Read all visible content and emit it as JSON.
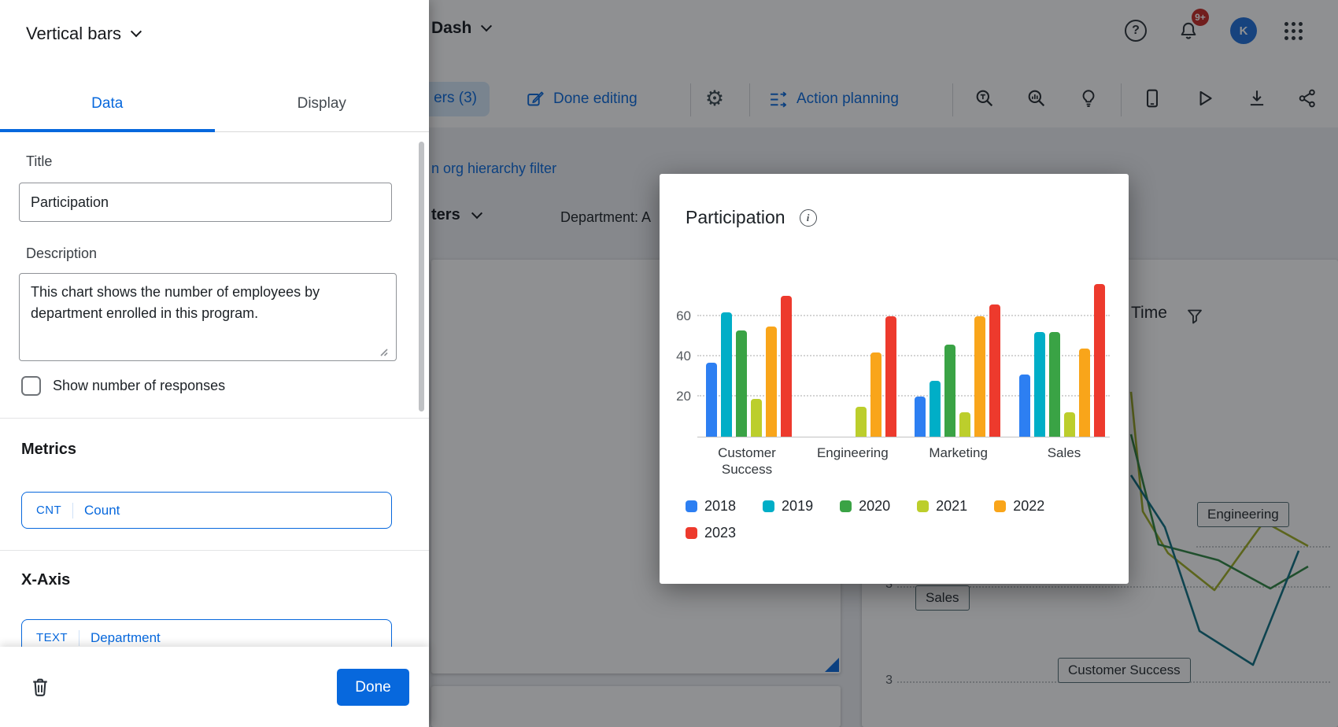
{
  "accent_color": "#0768dd",
  "header": {
    "dashboard_name": "Dash",
    "notification_count": "9+",
    "avatar_initial": "K",
    "help_glyph": "?"
  },
  "toolbar": {
    "filters_chip": "ers (3)",
    "done_editing_label": "Done editing",
    "action_planning_label": "Action planning",
    "gear_glyph": "⚙"
  },
  "dashboard": {
    "hierarchy_link": "n org hierarchy filter",
    "filters_dropdown": "ters",
    "department_filter": "Department: A",
    "time_widget": {
      "title": "Time",
      "y_ticks": [
        "3",
        "3"
      ],
      "line_labels": [
        "Engineering",
        "Sales",
        "Customer Success"
      ]
    }
  },
  "panel": {
    "widget_type_label": "Vertical bars",
    "tabs": [
      {
        "label": "Data"
      },
      {
        "label": "Display"
      }
    ],
    "fields": {
      "title_label": "Title",
      "title_value": "Participation",
      "description_label": "Description",
      "description_value": "This chart shows the number of employees by department enrolled in this program.",
      "checkbox_label": "Show number of responses"
    },
    "metrics": {
      "heading": "Metrics",
      "chip_badge": "CNT",
      "chip_label": "Count"
    },
    "xaxis": {
      "heading": "X-Axis",
      "chip_badge": "TEXT",
      "chip_label": "Department"
    },
    "footer": {
      "done_label": "Done"
    }
  },
  "modal": {
    "title": "Participation",
    "info_glyph": "i"
  },
  "chart_data": {
    "type": "bar",
    "title": "Participation",
    "categories": [
      "Customer Success",
      "Engineering",
      "Marketing",
      "Sales"
    ],
    "series": [
      {
        "name": "2018",
        "color": "#2D7FF2",
        "values": [
          37,
          0,
          20,
          31
        ]
      },
      {
        "name": "2019",
        "color": "#00AEC7",
        "values": [
          62,
          0,
          28,
          52
        ]
      },
      {
        "name": "2020",
        "color": "#3AA345",
        "values": [
          53,
          0,
          46,
          52
        ]
      },
      {
        "name": "2021",
        "color": "#BCCE2C",
        "values": [
          19,
          15,
          12,
          12
        ]
      },
      {
        "name": "2022",
        "color": "#F9A51A",
        "values": [
          55,
          42,
          60,
          44
        ]
      },
      {
        "name": "2023",
        "color": "#ED3A2D",
        "values": [
          70,
          60,
          66,
          76
        ]
      }
    ],
    "ylim": [
      0,
      80
    ],
    "yticks": [
      20,
      40,
      60
    ],
    "xlabel": "",
    "ylabel": "",
    "grid": "dotted-horizontal",
    "legend_position": "bottom"
  }
}
